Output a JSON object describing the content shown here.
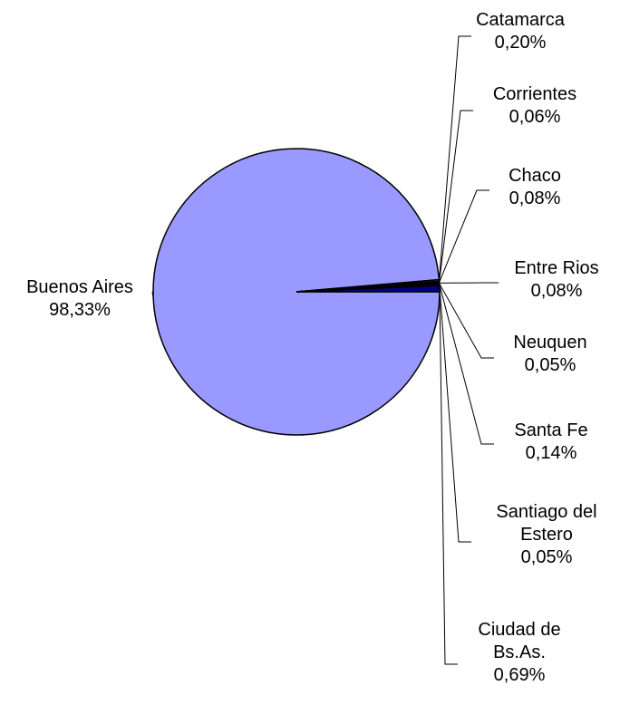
{
  "chart_data": {
    "type": "pie",
    "categories": [
      "Buenos Aires",
      "Catamarca",
      "Corrientes",
      "Chaco",
      "Entre Rios",
      "Neuquen",
      "Santa Fe",
      "Santiago del Estero",
      "Ciudad de Bs.As."
    ],
    "values": [
      98.33,
      0.2,
      0.06,
      0.08,
      0.08,
      0.05,
      0.14,
      0.05,
      0.69
    ],
    "value_labels": [
      "98,33%",
      "0,20%",
      "0,06%",
      "0,08%",
      "0,08%",
      "0,05%",
      "0,14%",
      "0,05%",
      "0,69%"
    ],
    "colors": [
      "#9999ff",
      "#993366",
      "#ffffcc",
      "#ccffff",
      "#660066",
      "#ff8080",
      "#0066cc",
      "#ccccff",
      "#000080"
    ]
  }
}
